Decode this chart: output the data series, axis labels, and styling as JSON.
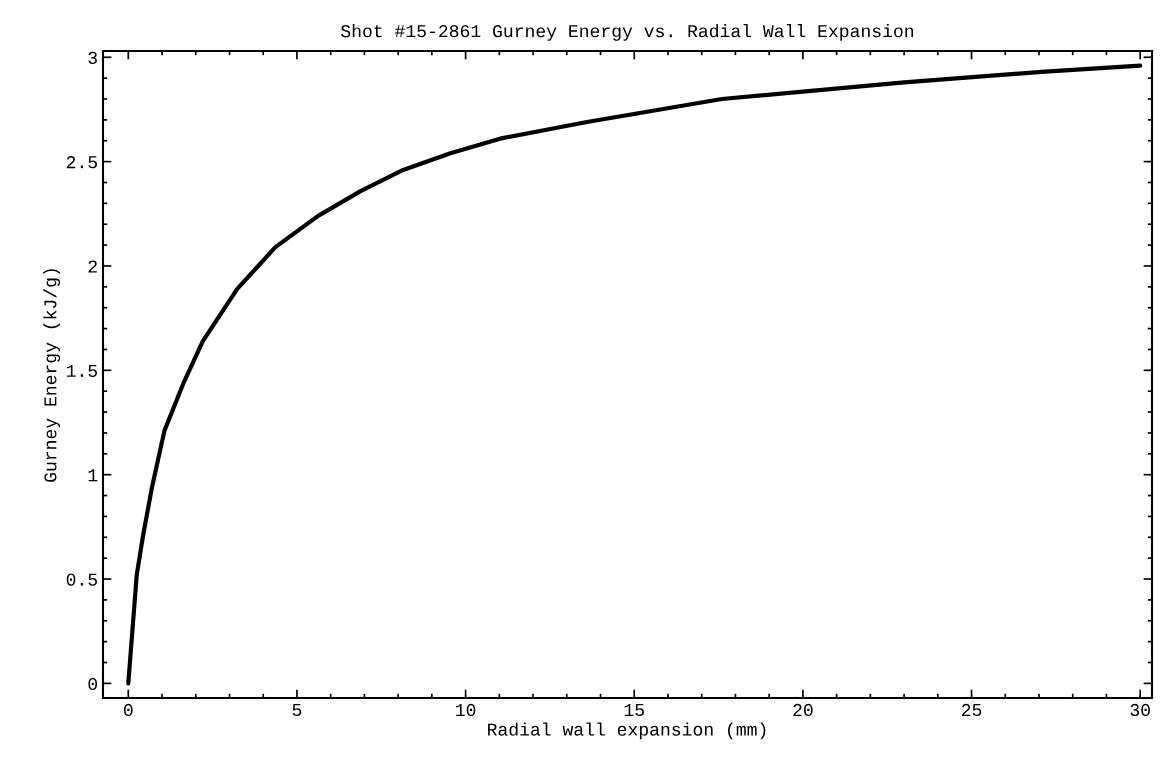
{
  "chart_data": {
    "type": "line",
    "title": "Shot #15-2861 Gurney Energy vs. Radial Wall Expansion",
    "xlabel": "Radial wall expansion (mm)",
    "ylabel": "Gurney Energy (kJ/g)",
    "series": [
      {
        "color": "#000000",
        "x": [
          0,
          0.25,
          0.44,
          0.69,
          1.07,
          1.64,
          2.21,
          3.23,
          4.36,
          5.63,
          6.9,
          8.15,
          9.55,
          11.02,
          13.6,
          17.6,
          23.0,
          27.07,
          30.0
        ],
        "values": [
          0,
          0.52,
          0.71,
          0.93,
          1.21,
          1.44,
          1.64,
          1.89,
          2.09,
          2.24,
          2.36,
          2.46,
          2.54,
          2.61,
          2.69,
          2.8,
          2.88,
          2.93,
          2.96
        ]
      }
    ],
    "xlim": [
      -0.75,
      30.35
    ],
    "ylim": [
      -0.07,
      3.03
    ],
    "xticks": [
      0,
      5,
      10,
      15,
      20,
      25,
      30
    ],
    "yticks": [
      0,
      0.5,
      1,
      1.5,
      2,
      2.5,
      3
    ],
    "grid": false,
    "legend": false,
    "marker": "none",
    "line_style": "solid"
  }
}
